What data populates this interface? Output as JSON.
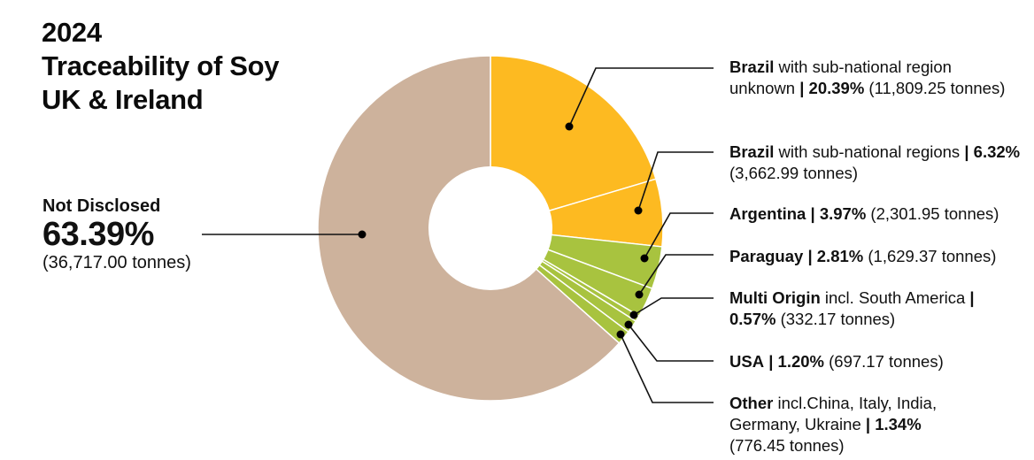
{
  "title": {
    "line1": "2024",
    "line2": "Traceability of Soy",
    "line3": "UK & Ireland"
  },
  "not_disclosed": {
    "label": "Not Disclosed",
    "percent": "63.39%",
    "tonnes": "(36,717.00 tonnes)"
  },
  "labels": [
    {
      "bold": "Brazil",
      "text": " with sub-national region unknown ",
      "sep": "| ",
      "pct": "20.39%",
      "tonnes": " (11,809.25 tonnes)"
    },
    {
      "bold": "Brazil",
      "text": " with sub-national regions ",
      "sep": "| ",
      "pct": "6.32%",
      "tonnes": " (3,662.99 tonnes)"
    },
    {
      "bold": "Argentina",
      "text": " ",
      "sep": "| ",
      "pct": "3.97%",
      "tonnes": " (2,301.95 tonnes)"
    },
    {
      "bold": "Paraguay",
      "text": " ",
      "sep": "| ",
      "pct": "2.81%",
      "tonnes": " (1,629.37 tonnes)"
    },
    {
      "bold": "Multi Origin",
      "text": " incl. South America ",
      "sep": "| ",
      "pct": "0.57%",
      "tonnes": " (332.17 tonnes)"
    },
    {
      "bold": "USA",
      "text": " ",
      "sep": "| ",
      "pct": "1.20%",
      "tonnes": " (697.17 tonnes)"
    },
    {
      "bold": "Other",
      "text": " incl.China, Italy, India, Germany, Ukraine ",
      "sep": "| ",
      "pct": "1.34%",
      "tonnes": " (776.45 tonnes)"
    }
  ],
  "colors": {
    "brazil": "#FDBA21",
    "south_america_other": "#A8C33F",
    "not_disclosed": "#CDB29C",
    "separator": "#FFFFFF",
    "leader": "#111111"
  },
  "chart_data": {
    "type": "pie",
    "subtype": "donut",
    "title": "2024 Traceability of Soy UK & Ireland",
    "unit": "tonnes",
    "categories": [
      "Brazil with sub-national region unknown",
      "Brazil with sub-national regions",
      "Argentina",
      "Paraguay",
      "Multi Origin incl. South America",
      "USA",
      "Other incl. China, Italy, India, Germany, Ukraine",
      "Not Disclosed"
    ],
    "percent": [
      20.39,
      6.32,
      3.97,
      2.81,
      0.57,
      1.2,
      1.34,
      63.39
    ],
    "values": [
      11809.25,
      3662.99,
      2301.95,
      1629.37,
      332.17,
      697.17,
      776.45,
      36717.0
    ],
    "slice_colors": [
      "#FDBA21",
      "#FDBA21",
      "#A8C33F",
      "#A8C33F",
      "#A8C33F",
      "#A8C33F",
      "#A8C33F",
      "#CDB29C"
    ],
    "start_angle_deg": 0,
    "direction": "clockwise",
    "legend_position": "right (leader-line labels)"
  }
}
